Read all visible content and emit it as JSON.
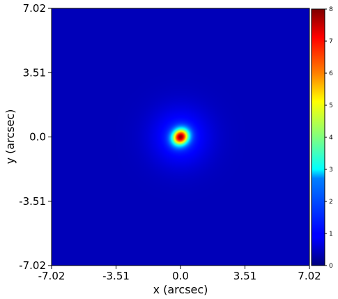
{
  "chart_data": {
    "type": "heatmap",
    "title": "",
    "xlabel": "x (arcsec)",
    "ylabel": "y (arcsec)",
    "xlim": [
      -7.02,
      7.02
    ],
    "ylim": [
      -7.02,
      7.02
    ],
    "xticks": [
      -7.02,
      -3.51,
      0.0,
      3.51,
      7.02
    ],
    "yticks": [
      -7.02,
      -3.51,
      0.0,
      3.51,
      7.02
    ],
    "xtick_labels": [
      "-7.02",
      "-3.51",
      "0.0",
      "3.51",
      "7.02"
    ],
    "ytick_labels": [
      "-7.02",
      "-3.51",
      "0.0",
      "3.51",
      "7.02"
    ],
    "colormap": "jet",
    "colorbar": {
      "range": [
        0,
        8
      ],
      "ticks": [
        0,
        1,
        2,
        3,
        4,
        5,
        6,
        7,
        8
      ],
      "tick_labels": [
        "0",
        "1",
        "2",
        "3",
        "4",
        "5",
        "6",
        "7",
        "8"
      ]
    },
    "source": {
      "x": 0.0,
      "y": 0.0,
      "peak": 7.9,
      "background": 0.45,
      "core_sigma_arcsec": 0.28,
      "halo_sigma_arcsec": 1.1
    },
    "grid": false
  }
}
